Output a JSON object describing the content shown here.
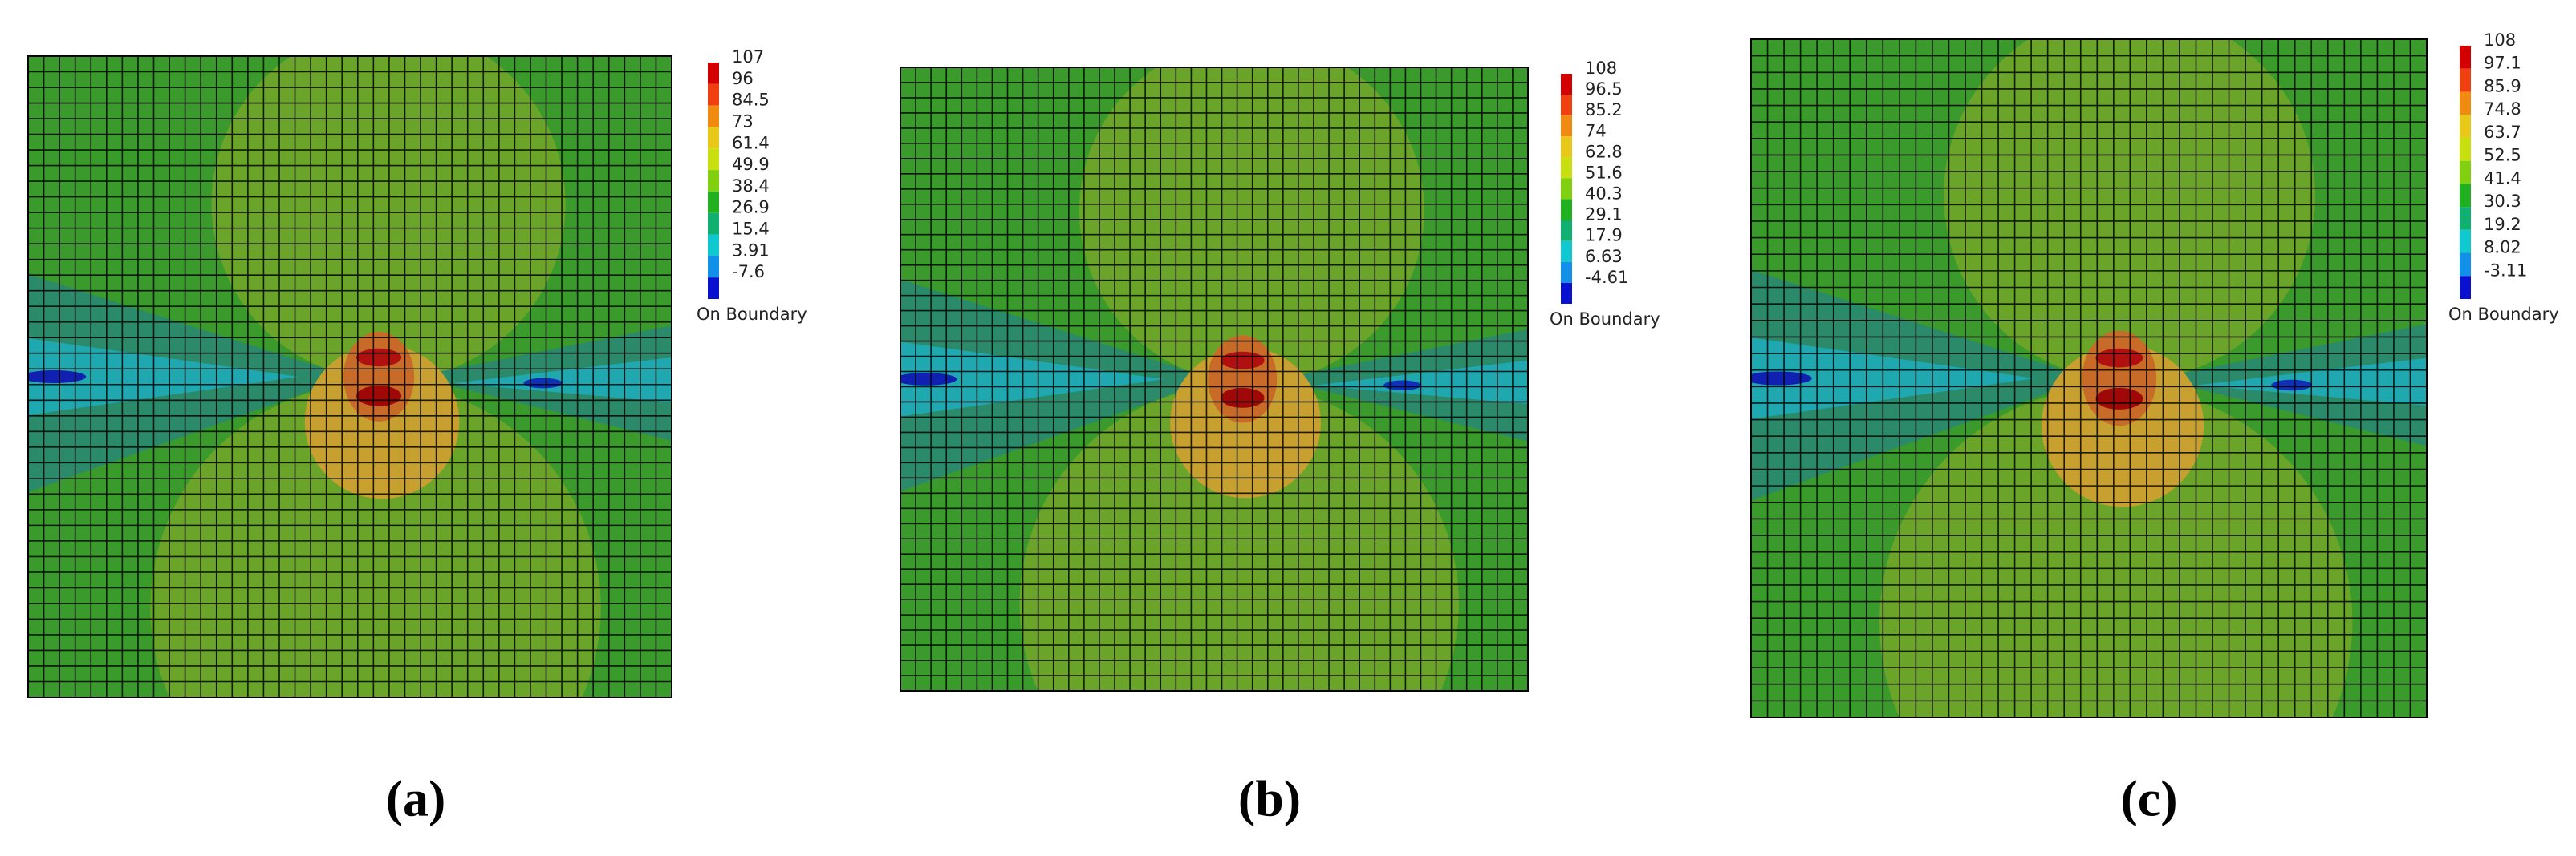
{
  "panels": [
    {
      "label": "(a)",
      "legend": {
        "values": [
          107,
          96,
          84.5,
          73,
          61.4,
          49.9,
          38.4,
          26.9,
          15.4,
          3.91,
          -7.6
        ],
        "caption": "On Boundary"
      }
    },
    {
      "label": "(b)",
      "legend": {
        "values": [
          108,
          96.5,
          85.2,
          74,
          62.8,
          51.6,
          40.3,
          29.1,
          17.9,
          6.63,
          -4.61
        ],
        "caption": "On Boundary"
      }
    },
    {
      "label": "(c)",
      "legend": {
        "values": [
          108,
          97.1,
          85.9,
          74.8,
          63.7,
          52.5,
          41.4,
          30.3,
          19.2,
          8.02,
          -3.11
        ],
        "caption": "On Boundary"
      }
    }
  ]
}
